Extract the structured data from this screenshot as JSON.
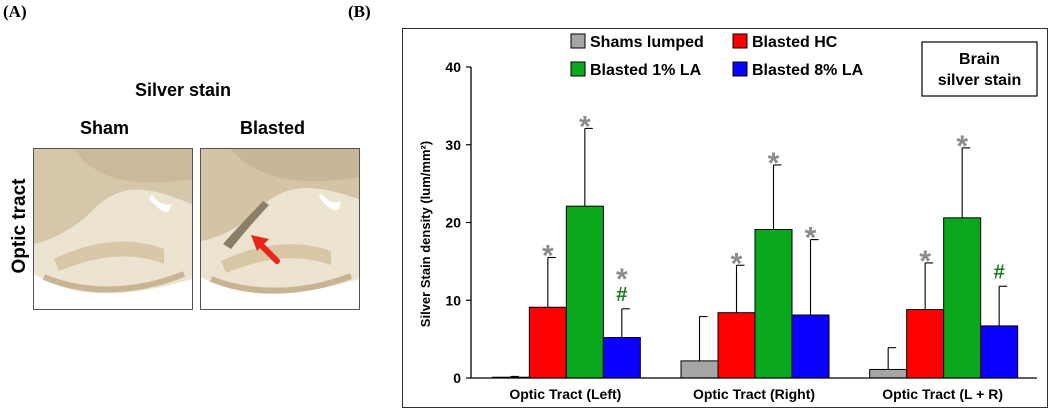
{
  "panel_a": {
    "label": "(A)",
    "title": "Silver stain",
    "col_sham": "Sham",
    "col_blasted": "Blasted",
    "row_label": "Optic tract",
    "arrow_color": "#e8261e"
  },
  "panel_b": {
    "label": "(B)",
    "inset_title_line1": "Brain",
    "inset_title_line2": "silver stain"
  },
  "chart_data": {
    "type": "bar",
    "categories": [
      "Optic Tract (Left)",
      "Optic Tract (Right)",
      "Optic Tract (L + R)"
    ],
    "ylabel": "Silver Stain density (lum/mm²)",
    "xlabel": "",
    "ylim": [
      0,
      40
    ],
    "yticks": [
      0,
      10,
      20,
      30,
      40
    ],
    "legend_position": "top",
    "series": [
      {
        "name": "Shams lumped",
        "color": "#a6a6a6",
        "values": [
          0.1,
          2.2,
          1.1
        ],
        "errors": [
          0.1,
          5.7,
          2.8
        ],
        "markers": [
          "",
          "",
          ""
        ]
      },
      {
        "name": "Blasted HC",
        "color": "#ff0000",
        "values": [
          9.1,
          8.4,
          8.8
        ],
        "errors": [
          6.4,
          6.1,
          6.0
        ],
        "markers": [
          "*",
          "*",
          "*"
        ]
      },
      {
        "name": "Blasted 1% LA",
        "color": "#0aa81e",
        "values": [
          22.1,
          19.1,
          20.6
        ],
        "errors": [
          10.0,
          8.3,
          9.0
        ],
        "markers": [
          "*",
          "*",
          "*"
        ]
      },
      {
        "name": "Blasted 8% LA",
        "color": "#0a00ff",
        "values": [
          5.2,
          8.1,
          6.7
        ],
        "errors": [
          3.7,
          9.7,
          5.1
        ],
        "markers": [
          "*|#",
          "*",
          "#"
        ]
      }
    ],
    "marker_colors": {
      "*": "#8c8c8c",
      "#": "#1a7a1a"
    }
  }
}
